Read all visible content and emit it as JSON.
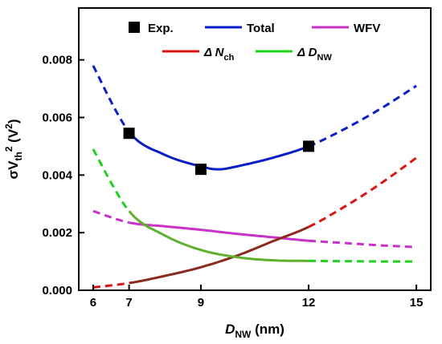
{
  "chart_data": {
    "type": "line",
    "x_axis": {
      "label": "D",
      "label_sub": "NW",
      "label_unit": " (nm)",
      "range": [
        5.6,
        15.4
      ],
      "ticks": [
        6,
        7,
        9,
        12,
        15
      ],
      "tick_labels": [
        "6",
        "7",
        "9",
        "12",
        "15"
      ]
    },
    "y_axis": {
      "label_prefix": "σV",
      "label_sub": "th",
      "label_sup": "2",
      "label_unit": " (V",
      "label_unit_sup": "2",
      "label_unit_close": ")",
      "range": [
        0.0,
        0.0098
      ],
      "ticks": [
        0.0,
        0.002,
        0.004,
        0.006,
        0.008
      ],
      "tick_labels": [
        "0.000",
        "0.002",
        "0.004",
        "0.006",
        "0.008"
      ]
    },
    "grid": false,
    "legend_position": "top",
    "legend": [
      {
        "id": "exp",
        "marker": "square",
        "text": "Exp.",
        "sub": ""
      },
      {
        "id": "total",
        "marker": "line",
        "text": "Total",
        "sub": ""
      },
      {
        "id": "wfv",
        "marker": "line",
        "text": "WFV",
        "sub": ""
      },
      {
        "id": "dnch",
        "marker": "line",
        "text": "Δ N",
        "sub": "ch"
      },
      {
        "id": "ddnw",
        "marker": "line",
        "text": "Δ D",
        "sub": "NW"
      }
    ],
    "experimental": {
      "name": "Exp.",
      "points": [
        {
          "x": 7,
          "y": 0.00545
        },
        {
          "x": 9,
          "y": 0.0042
        },
        {
          "x": 12,
          "y": 0.005
        }
      ]
    },
    "series": [
      {
        "id": "total",
        "name": "Total",
        "color": "#0a1ec8",
        "solid_range": [
          7,
          12
        ],
        "x": [
          6,
          7,
          8,
          9,
          9.5,
          10,
          11,
          12,
          13,
          14,
          15
        ],
        "y": [
          0.0078,
          0.0055,
          0.0047,
          0.0043,
          0.0042,
          0.0043,
          0.0046,
          0.005,
          0.0056,
          0.0063,
          0.0071
        ]
      },
      {
        "id": "wfv",
        "name": "WFV",
        "color": "#c832c8",
        "solid_range": [
          7,
          12
        ],
        "x": [
          6,
          7,
          8,
          9,
          10,
          11,
          12,
          13,
          14,
          15
        ],
        "y": [
          0.00275,
          0.00235,
          0.00222,
          0.0021,
          0.00196,
          0.00184,
          0.00172,
          0.00164,
          0.00156,
          0.0015
        ]
      },
      {
        "id": "dnch",
        "name": "Δ Nch",
        "color": "#dc1414",
        "solid_color": "#8b2a1e",
        "solid_range": [
          7,
          12
        ],
        "x": [
          6,
          7,
          8,
          9,
          10,
          11,
          12,
          13,
          14,
          15
        ],
        "y": [
          0.0001,
          0.00025,
          0.0005,
          0.0008,
          0.0012,
          0.0017,
          0.0022,
          0.0029,
          0.0037,
          0.0046
        ]
      },
      {
        "id": "ddnw",
        "name": "Δ DNW",
        "color": "#1ed21e",
        "solid_color": "#5fb02e",
        "solid_range": [
          7,
          12
        ],
        "x": [
          6,
          7,
          8,
          9,
          10,
          11,
          12,
          13,
          14,
          15
        ],
        "y": [
          0.0049,
          0.00275,
          0.0019,
          0.0014,
          0.00115,
          0.00104,
          0.00102,
          0.00101,
          0.001,
          0.001
        ]
      }
    ]
  }
}
